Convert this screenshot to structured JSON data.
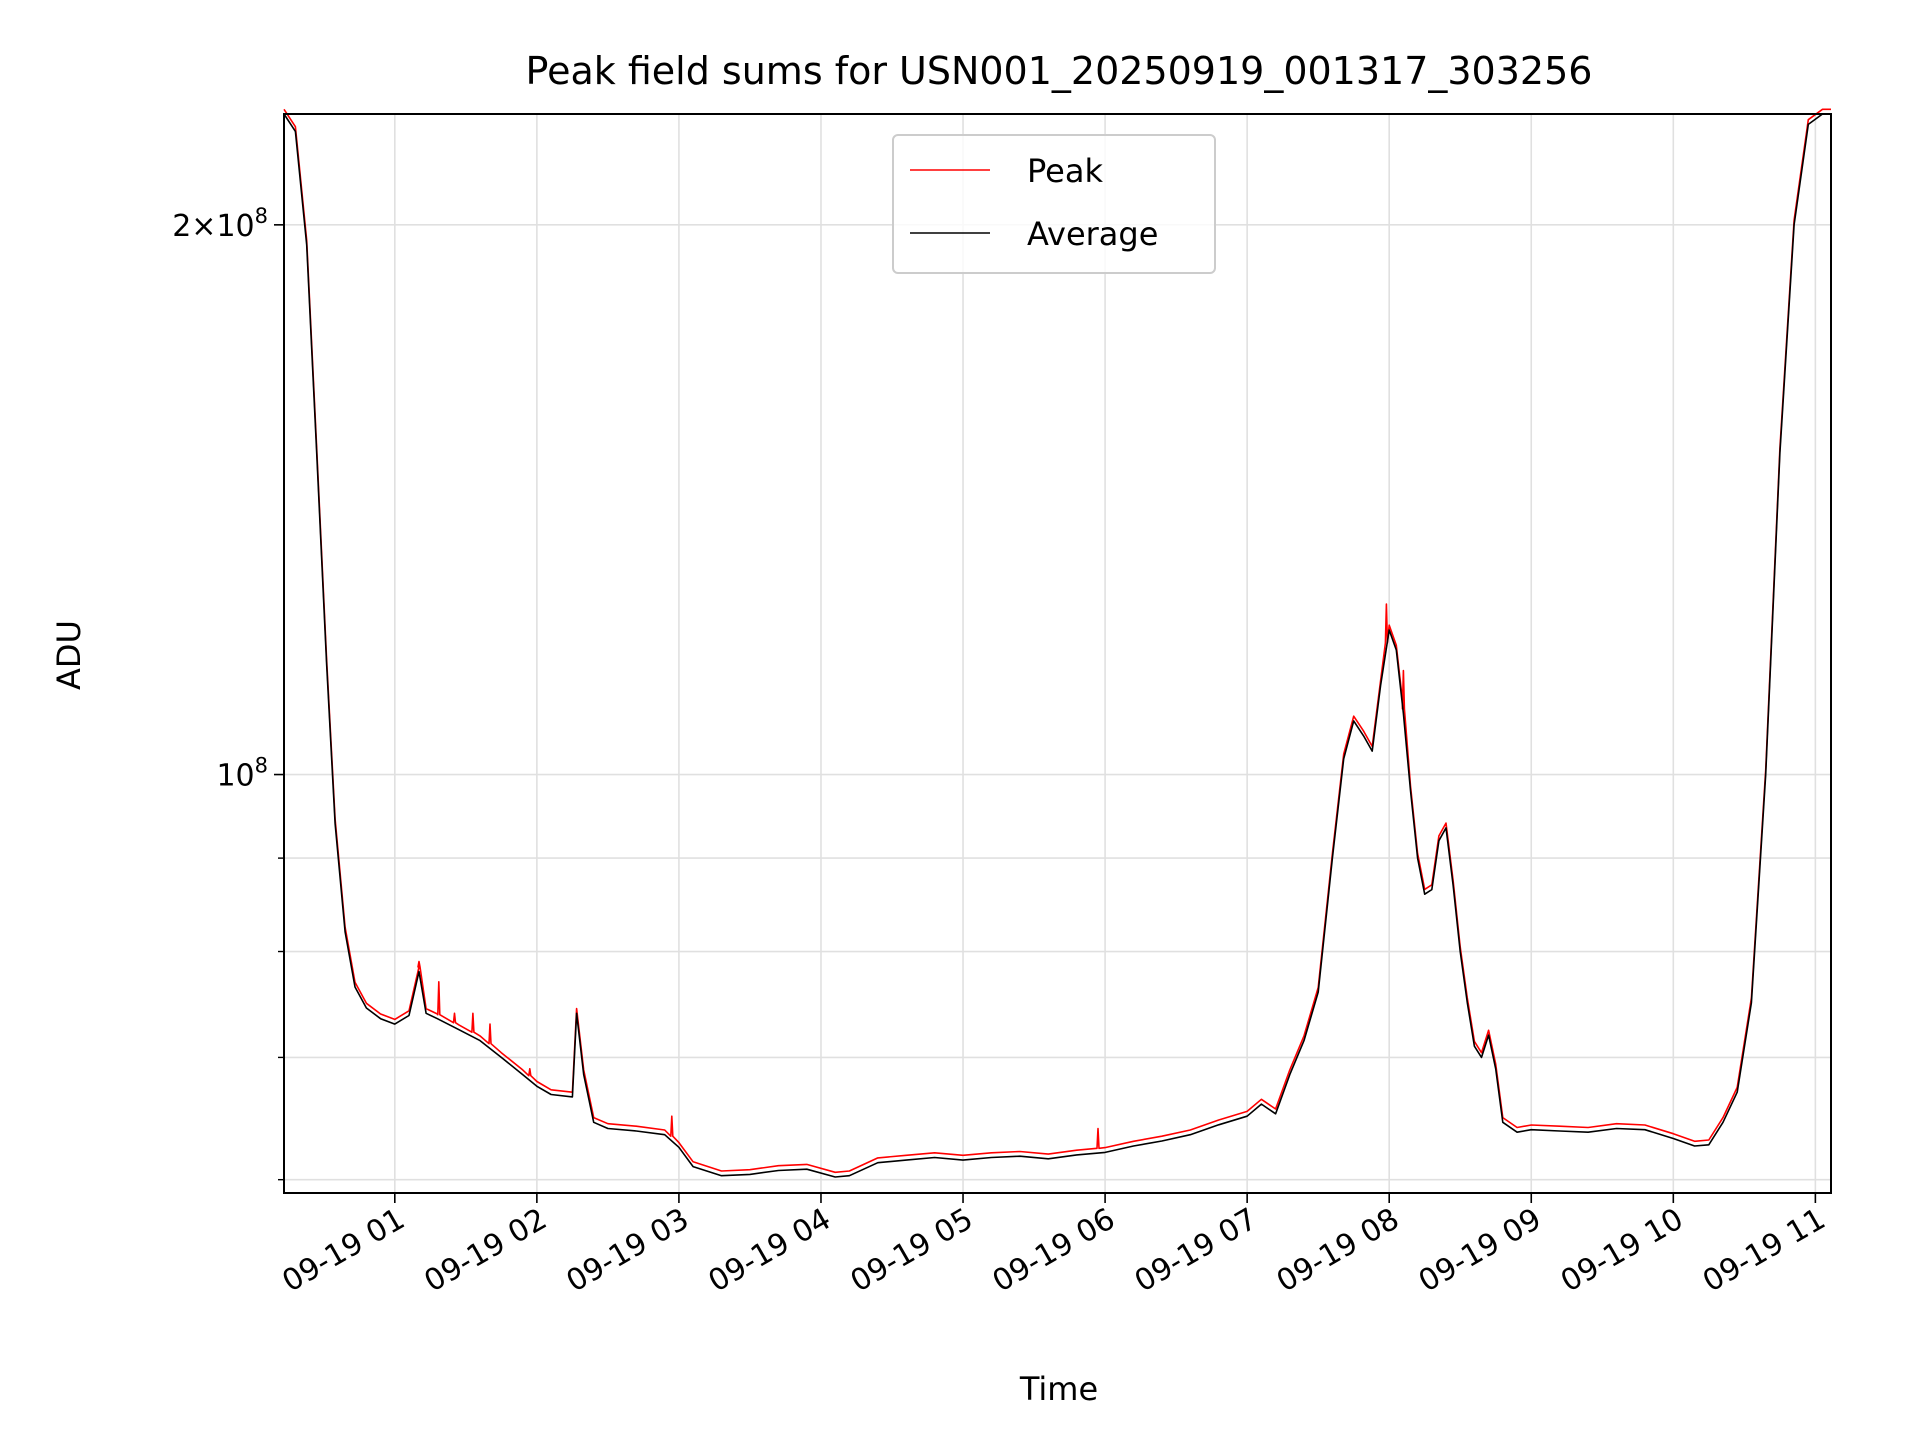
{
  "chart_data": {
    "type": "line",
    "title": "Peak field sums for USN001_20250919_001317_303256",
    "xlabel": "Time",
    "ylabel": "ADU",
    "yscale": "log",
    "grid": true,
    "legend_position": "top-center",
    "xlim": [
      0.22,
      11.11
    ],
    "ylim": [
      59000000,
      230000000
    ],
    "x_unit": "hours after 2025-09-19 00:00",
    "x_ticks": [
      {
        "value": 1,
        "label": "09-19 01"
      },
      {
        "value": 2,
        "label": "09-19 02"
      },
      {
        "value": 3,
        "label": "09-19 03"
      },
      {
        "value": 4,
        "label": "09-19 04"
      },
      {
        "value": 5,
        "label": "09-19 05"
      },
      {
        "value": 6,
        "label": "09-19 06"
      },
      {
        "value": 7,
        "label": "09-19 07"
      },
      {
        "value": 8,
        "label": "09-19 08"
      },
      {
        "value": 9,
        "label": "09-19 09"
      },
      {
        "value": 10,
        "label": "09-19 10"
      },
      {
        "value": 11,
        "label": "09-19 11"
      }
    ],
    "y_ticks_major": [
      {
        "value": 100000000,
        "base": "10",
        "exp": "8",
        "coef": ""
      },
      {
        "value": 200000000,
        "base": "10",
        "exp": "8",
        "coef": "2"
      }
    ],
    "y_ticks_minor": [
      60000000,
      70000000,
      80000000,
      90000000
    ],
    "colors": {
      "peak": "#ff0000",
      "average": "#000000",
      "grid": "#e0e0e0"
    },
    "series": [
      {
        "name": "Peak",
        "color": "#ff0000",
        "spikes": [
          [
            1.17,
            79000000
          ],
          [
            1.31,
            77000000
          ],
          [
            1.42,
            74000000
          ],
          [
            1.55,
            74000000
          ],
          [
            1.67,
            73000000
          ],
          [
            1.95,
            69000000
          ],
          [
            7.98,
            124000000
          ],
          [
            8.1,
            114000000
          ],
          [
            2.95,
            65000000
          ],
          [
            5.95,
            64000000
          ]
        ]
      },
      {
        "name": "Average",
        "color": "#000000",
        "points": [
          [
            0.22,
            230000000
          ],
          [
            0.3,
            225000000
          ],
          [
            0.38,
            195000000
          ],
          [
            0.45,
            150000000
          ],
          [
            0.52,
            115000000
          ],
          [
            0.58,
            94000000
          ],
          [
            0.65,
            82000000
          ],
          [
            0.72,
            76500000
          ],
          [
            0.8,
            74500000
          ],
          [
            0.9,
            73500000
          ],
          [
            1.0,
            73000000
          ],
          [
            1.1,
            73800000
          ],
          [
            1.17,
            78000000
          ],
          [
            1.22,
            74000000
          ],
          [
            1.3,
            73500000
          ],
          [
            1.45,
            72500000
          ],
          [
            1.6,
            71500000
          ],
          [
            1.75,
            70000000
          ],
          [
            1.9,
            68500000
          ],
          [
            2.0,
            67500000
          ],
          [
            2.1,
            66800000
          ],
          [
            2.25,
            66600000
          ],
          [
            2.28,
            74000000
          ],
          [
            2.33,
            68500000
          ],
          [
            2.4,
            64500000
          ],
          [
            2.5,
            64000000
          ],
          [
            2.7,
            63800000
          ],
          [
            2.9,
            63500000
          ],
          [
            3.0,
            62500000
          ],
          [
            3.1,
            61000000
          ],
          [
            3.3,
            60300000
          ],
          [
            3.5,
            60400000
          ],
          [
            3.7,
            60700000
          ],
          [
            3.9,
            60800000
          ],
          [
            4.1,
            60200000
          ],
          [
            4.2,
            60300000
          ],
          [
            4.4,
            61300000
          ],
          [
            4.6,
            61500000
          ],
          [
            4.8,
            61700000
          ],
          [
            5.0,
            61500000
          ],
          [
            5.2,
            61700000
          ],
          [
            5.4,
            61800000
          ],
          [
            5.6,
            61600000
          ],
          [
            5.8,
            61900000
          ],
          [
            6.0,
            62100000
          ],
          [
            6.2,
            62600000
          ],
          [
            6.4,
            63000000
          ],
          [
            6.6,
            63500000
          ],
          [
            6.8,
            64300000
          ],
          [
            7.0,
            65000000
          ],
          [
            7.1,
            66000000
          ],
          [
            7.2,
            65200000
          ],
          [
            7.3,
            68500000
          ],
          [
            7.4,
            71500000
          ],
          [
            7.5,
            76000000
          ],
          [
            7.6,
            90000000
          ],
          [
            7.68,
            102000000
          ],
          [
            7.75,
            107000000
          ],
          [
            7.82,
            105000000
          ],
          [
            7.88,
            103000000
          ],
          [
            7.94,
            112000000
          ],
          [
            8.0,
            120000000
          ],
          [
            8.05,
            117000000
          ],
          [
            8.1,
            108000000
          ],
          [
            8.15,
            98000000
          ],
          [
            8.2,
            90000000
          ],
          [
            8.25,
            86000000
          ],
          [
            8.3,
            86500000
          ],
          [
            8.35,
            92000000
          ],
          [
            8.4,
            93500000
          ],
          [
            8.45,
            87000000
          ],
          [
            8.5,
            80000000
          ],
          [
            8.55,
            75000000
          ],
          [
            8.6,
            71000000
          ],
          [
            8.65,
            70000000
          ],
          [
            8.7,
            72000000
          ],
          [
            8.75,
            69000000
          ],
          [
            8.8,
            64500000
          ],
          [
            8.9,
            63700000
          ],
          [
            9.0,
            63900000
          ],
          [
            9.2,
            63800000
          ],
          [
            9.4,
            63700000
          ],
          [
            9.6,
            64000000
          ],
          [
            9.8,
            63900000
          ],
          [
            10.0,
            63200000
          ],
          [
            10.15,
            62600000
          ],
          [
            10.25,
            62700000
          ],
          [
            10.35,
            64500000
          ],
          [
            10.45,
            67000000
          ],
          [
            10.55,
            75000000
          ],
          [
            10.65,
            100000000
          ],
          [
            10.75,
            150000000
          ],
          [
            10.85,
            200000000
          ],
          [
            10.95,
            227000000
          ],
          [
            11.05,
            230000000
          ],
          [
            11.11,
            230000000
          ]
        ]
      }
    ]
  }
}
